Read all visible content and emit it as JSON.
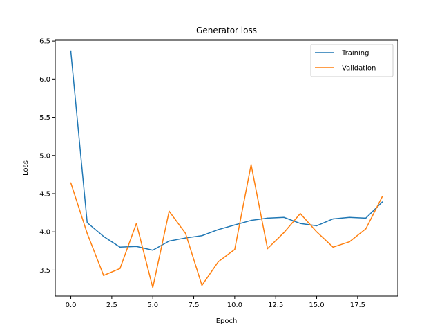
{
  "chart_data": {
    "type": "line",
    "title": "Generator loss",
    "xlabel": "Epoch",
    "ylabel": "Loss",
    "xlim": [
      -0.95,
      19.95
    ],
    "ylim": [
      3.16,
      6.51
    ],
    "xticks": [
      0.0,
      2.5,
      5.0,
      7.5,
      10.0,
      12.5,
      15.0,
      17.5
    ],
    "xtick_labels": [
      "0.0",
      "2.5",
      "5.0",
      "7.5",
      "10.0",
      "12.5",
      "15.0",
      "17.5"
    ],
    "yticks": [
      3.5,
      4.0,
      4.5,
      5.0,
      5.5,
      6.0,
      6.5
    ],
    "ytick_labels": [
      "3.5",
      "4.0",
      "4.5",
      "5.0",
      "5.5",
      "6.0",
      "6.5"
    ],
    "grid": false,
    "legend_position": "top-right",
    "x": [
      0,
      1,
      2,
      3,
      4,
      5,
      6,
      7,
      8,
      9,
      10,
      11,
      12,
      13,
      14,
      15,
      16,
      17,
      18,
      19
    ],
    "series": [
      {
        "name": "Training",
        "color": "#1f77b4",
        "values": [
          6.36,
          4.12,
          3.94,
          3.8,
          3.81,
          3.76,
          3.88,
          3.92,
          3.95,
          4.03,
          4.09,
          4.15,
          4.18,
          4.19,
          4.11,
          4.08,
          4.17,
          4.19,
          4.18,
          4.39
        ]
      },
      {
        "name": "Validation",
        "color": "#ff7f0e",
        "values": [
          4.64,
          3.98,
          3.43,
          3.52,
          4.11,
          3.27,
          4.27,
          3.98,
          3.3,
          3.61,
          3.77,
          4.88,
          3.78,
          3.99,
          4.24,
          4.0,
          3.8,
          3.87,
          4.04,
          4.46
        ]
      }
    ]
  }
}
